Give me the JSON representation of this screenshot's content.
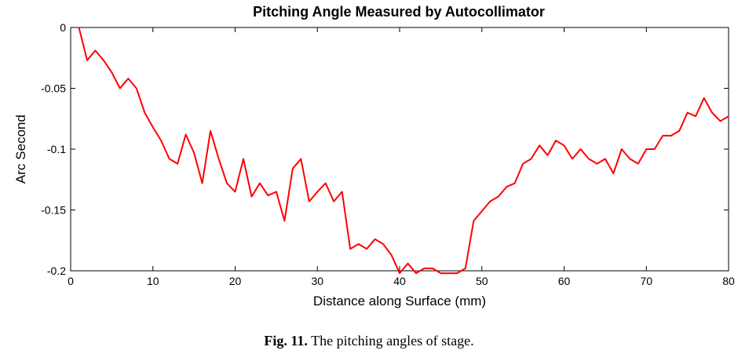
{
  "caption": {
    "label": "Fig. 11.",
    "text": "The pitching angles of stage."
  },
  "chart_data": {
    "type": "line",
    "title": "Pitching Angle Measured by Autocollimator",
    "xlabel": "Distance along Surface (mm)",
    "ylabel": "Arc Second",
    "xlim": [
      0,
      80
    ],
    "ylim": [
      -0.2,
      0
    ],
    "xticks": [
      0,
      10,
      20,
      30,
      40,
      50,
      60,
      70,
      80
    ],
    "xtick_labels": [
      "0",
      "10",
      "20",
      "30",
      "40",
      "50",
      "60",
      "70",
      "80"
    ],
    "yticks": [
      0,
      -0.05,
      -0.1,
      -0.15,
      -0.2
    ],
    "ytick_labels": [
      "0",
      "-0.05",
      "-0.1",
      "-0.15",
      "-0.2"
    ],
    "grid": false,
    "series": [
      {
        "color": "#ff0000",
        "x": [
          1,
          2,
          3,
          4,
          5,
          6,
          7,
          8,
          9,
          10,
          11,
          12,
          13,
          14,
          15,
          16,
          17,
          18,
          19,
          20,
          21,
          22,
          23,
          24,
          25,
          26,
          27,
          28,
          29,
          30,
          31,
          32,
          33,
          34,
          35,
          36,
          37,
          38,
          39,
          40,
          41,
          42,
          43,
          44,
          45,
          46,
          47,
          48,
          49,
          50,
          51,
          52,
          53,
          54,
          55,
          56,
          57,
          58,
          59,
          60,
          61,
          62,
          63,
          64,
          65,
          66,
          67,
          68,
          69,
          70,
          71,
          72,
          73,
          74,
          75,
          76,
          77,
          78,
          79,
          80
        ],
        "y": [
          0,
          -0.027,
          -0.019,
          -0.027,
          -0.037,
          -0.05,
          -0.042,
          -0.05,
          -0.07,
          -0.082,
          -0.093,
          -0.108,
          -0.112,
          -0.088,
          -0.103,
          -0.128,
          -0.085,
          -0.108,
          -0.128,
          -0.135,
          -0.108,
          -0.139,
          -0.128,
          -0.138,
          -0.135,
          -0.159,
          -0.116,
          -0.108,
          -0.143,
          -0.135,
          -0.128,
          -0.143,
          -0.135,
          -0.182,
          -0.178,
          -0.182,
          -0.174,
          -0.178,
          -0.187,
          -0.202,
          -0.194,
          -0.202,
          -0.198,
          -0.198,
          -0.202,
          -0.202,
          -0.202,
          -0.198,
          -0.159,
          -0.151,
          -0.143,
          -0.139,
          -0.131,
          -0.128,
          -0.112,
          -0.108,
          -0.097,
          -0.105,
          -0.093,
          -0.097,
          -0.108,
          -0.1,
          -0.108,
          -0.112,
          -0.108,
          -0.12,
          -0.1,
          -0.108,
          -0.112,
          -0.1,
          -0.1,
          -0.089,
          -0.089,
          -0.085,
          -0.07,
          -0.073,
          -0.058,
          -0.07,
          -0.077,
          -0.073
        ]
      }
    ]
  }
}
